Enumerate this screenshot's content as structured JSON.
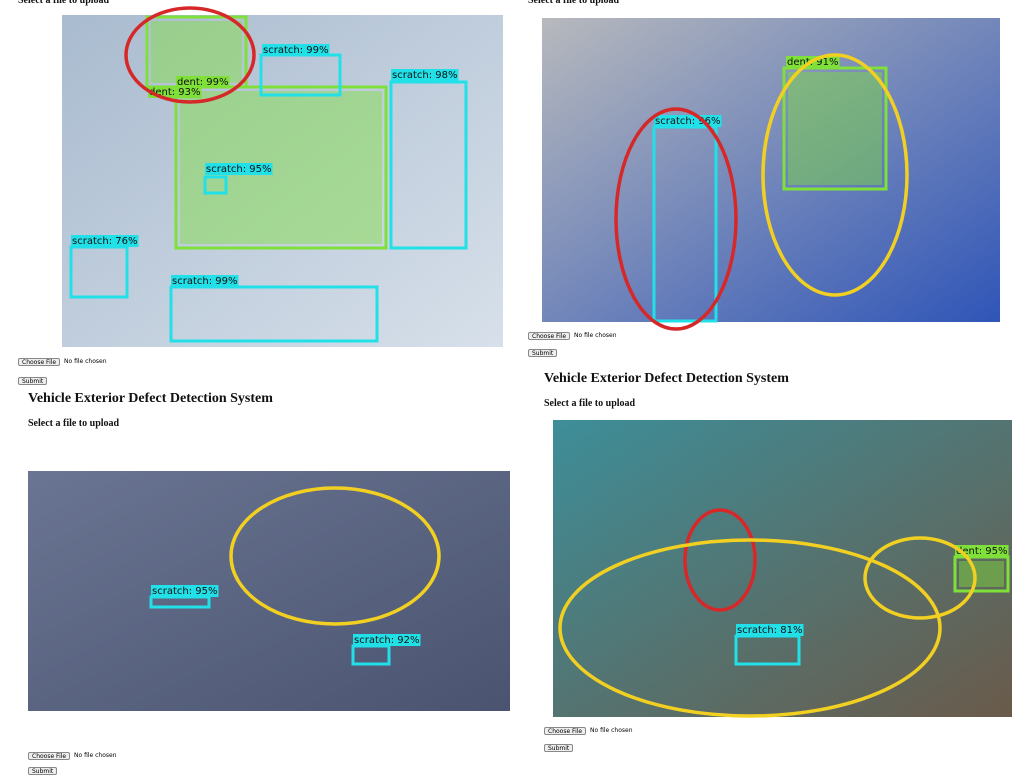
{
  "panels": [
    {
      "upload_label": "Select a file to upload",
      "detections": [
        "dent: 99%",
        "dent: 93%",
        "scratch: 99%",
        "scratch: 98%",
        "scratch: 95%",
        "scratch: 76%",
        "scratch: 99%"
      ],
      "choose_button": "Choose File",
      "file_status": "No file chosen",
      "submit_button": "Submit"
    },
    {
      "upload_label": "Select a file to upload",
      "detections": [
        "scratch: 96%",
        "dent: 91%"
      ],
      "choose_button": "Choose File",
      "file_status": "No file chosen",
      "submit_button": "Submit"
    },
    {
      "title": "Vehicle Exterior Defect Detection System",
      "upload_label": "Select a file to upload",
      "detections": [
        "scratch: 95%",
        "scratch: 92%"
      ],
      "choose_button": "Choose File",
      "file_status": "No file chosen",
      "submit_button": "Submit"
    },
    {
      "title": "Vehicle Exterior Defect Detection System",
      "upload_label": "Select a file to upload",
      "detections": [
        "dent: 95%",
        "scratch: 81%"
      ],
      "choose_button": "Choose File",
      "file_status": "No file chosen",
      "submit_button": "Submit"
    }
  ]
}
